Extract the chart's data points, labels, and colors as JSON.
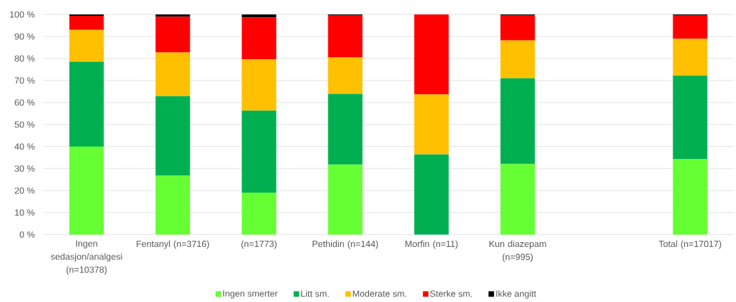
{
  "chart_data": {
    "type": "bar",
    "stacked": true,
    "categories": [
      "Ingen sedasjon/analgesi (n=10378)",
      "Fentanyl (n=3716)",
      "(n=1773)",
      "Pethidin (n=144)",
      "Morfin (n=11)",
      "Kun diazepam (n=995)",
      null,
      "Total (n=17017)"
    ],
    "series": [
      {
        "name": "Ingen smerter",
        "color": "#66ff33",
        "values": [
          40.0,
          26.8,
          19.1,
          31.8,
          0,
          32.0,
          null,
          34.2
        ]
      },
      {
        "name": "Litt sm.",
        "color": "#00b050",
        "values": [
          38.5,
          36.1,
          37.2,
          32.1,
          36.4,
          39.0,
          null,
          38.0
        ]
      },
      {
        "name": "Moderate sm.",
        "color": "#ffc000",
        "values": [
          14.5,
          19.8,
          23.4,
          16.6,
          27.3,
          17.2,
          null,
          16.7
        ]
      },
      {
        "name": "Sterke sm.",
        "color": "#ff0000",
        "values": [
          6.4,
          16.3,
          19.0,
          19.2,
          36.3,
          11.5,
          null,
          10.8
        ]
      },
      {
        "name": "Ikke angitt",
        "color": "#000000",
        "values": [
          0.6,
          1.0,
          1.3,
          0.3,
          0,
          0.3,
          null,
          0.3
        ]
      }
    ],
    "ylim": [
      0,
      100
    ],
    "yticks": [
      {
        "value": 0,
        "label": "0 %"
      },
      {
        "value": 10,
        "label": "10 %"
      },
      {
        "value": 20,
        "label": "20 %"
      },
      {
        "value": 30,
        "label": "30 %"
      },
      {
        "value": 40,
        "label": "40 %"
      },
      {
        "value": 50,
        "label": "50 %"
      },
      {
        "value": 60,
        "label": "60 %"
      },
      {
        "value": 70,
        "label": "70 %"
      },
      {
        "value": 80,
        "label": "80 %"
      },
      {
        "value": 90,
        "label": "90 %"
      },
      {
        "value": 100,
        "label": "100 %"
      }
    ],
    "grid": "y",
    "legend": "bottom"
  }
}
